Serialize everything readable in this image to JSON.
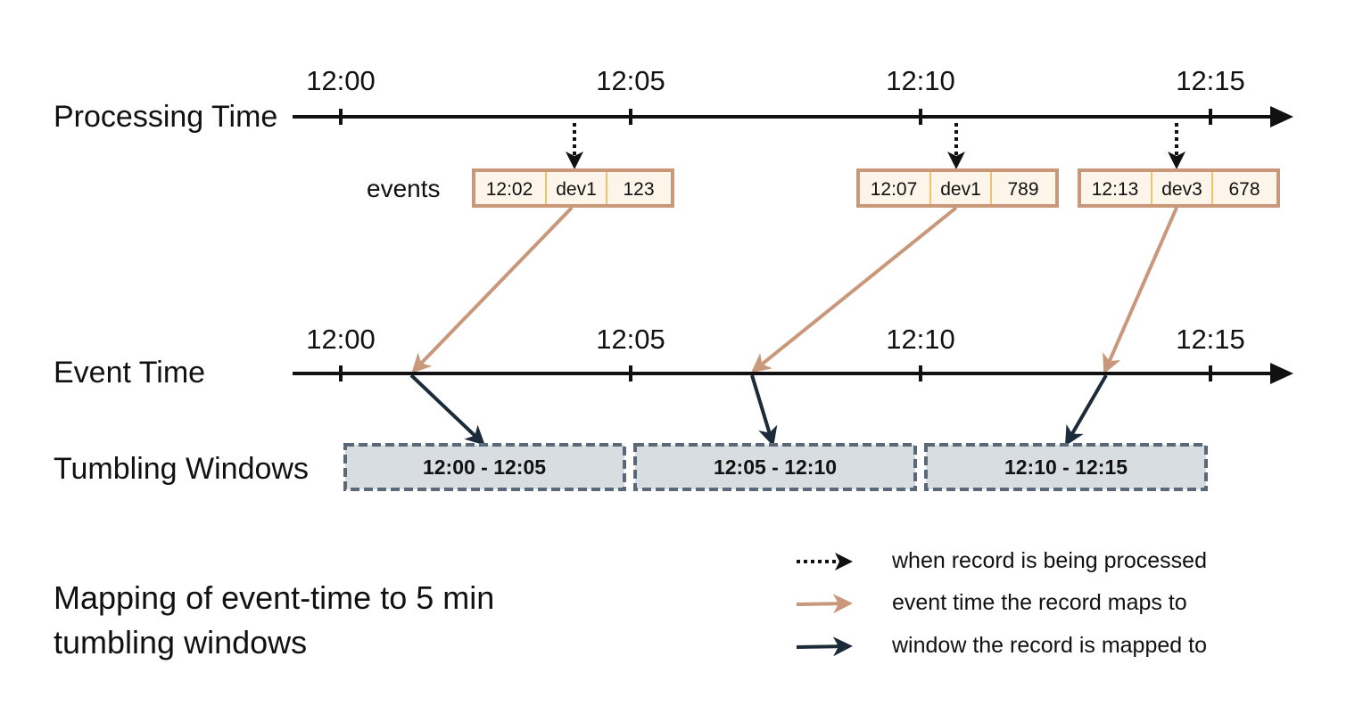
{
  "processing_time": {
    "label": "Processing Time",
    "ticks": [
      "12:00",
      "12:05",
      "12:10",
      "12:15"
    ]
  },
  "events_label": "events",
  "events": [
    {
      "cells": [
        "12:02",
        "dev1",
        "123"
      ]
    },
    {
      "cells": [
        "12:07",
        "dev1",
        "789"
      ]
    },
    {
      "cells": [
        "12:13",
        "dev3",
        "678"
      ]
    }
  ],
  "event_time": {
    "label": "Event Time",
    "ticks": [
      "12:00",
      "12:05",
      "12:10",
      "12:15"
    ]
  },
  "tumbling": {
    "label": "Tumbling Windows",
    "windows": [
      "12:00 - 12:05",
      "12:05 - 12:10",
      "12:10 - 12:15"
    ]
  },
  "legend": [
    {
      "label": "when record is being processed",
      "style": "dotted",
      "color": "#111111"
    },
    {
      "label": "event time the record maps to",
      "style": "solid",
      "color": "#c9977a"
    },
    {
      "label": "window the record is mapped to",
      "style": "solid",
      "color": "#1c2b3a"
    }
  ],
  "caption": {
    "line1": "Mapping of event-time to 5 min",
    "line2": "tumbling windows"
  },
  "colors": {
    "event_border": "#c9977a",
    "event_fill": "#fdf4ea",
    "event_divider": "#f0c36a",
    "window_fill": "#d8dde2",
    "window_border": "#5a6877",
    "window_arrow": "#1c2b3a",
    "event_arrow": "#c9977a"
  }
}
